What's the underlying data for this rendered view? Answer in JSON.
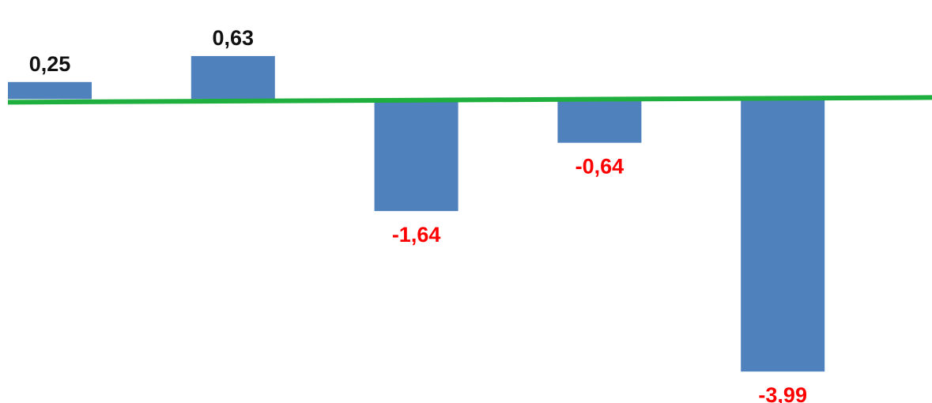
{
  "chart_data": {
    "type": "bar",
    "categories": [
      "",
      "",
      "",
      "",
      ""
    ],
    "values": [
      0.25,
      0.63,
      -1.64,
      -0.64,
      -3.99
    ],
    "data_labels": [
      "0,25",
      "0,63",
      "-1,64",
      "-0,64",
      "-3,99"
    ],
    "ylim": [
      -4.3,
      1.15
    ],
    "grid": false,
    "legend": "none",
    "axes_visible": false
  },
  "colors": {
    "bar": "#4F81BD",
    "baseline": "#1FAF3E",
    "label_positive": "#111111",
    "label_negative": "#FF0000",
    "background": "#FFFFFF"
  }
}
